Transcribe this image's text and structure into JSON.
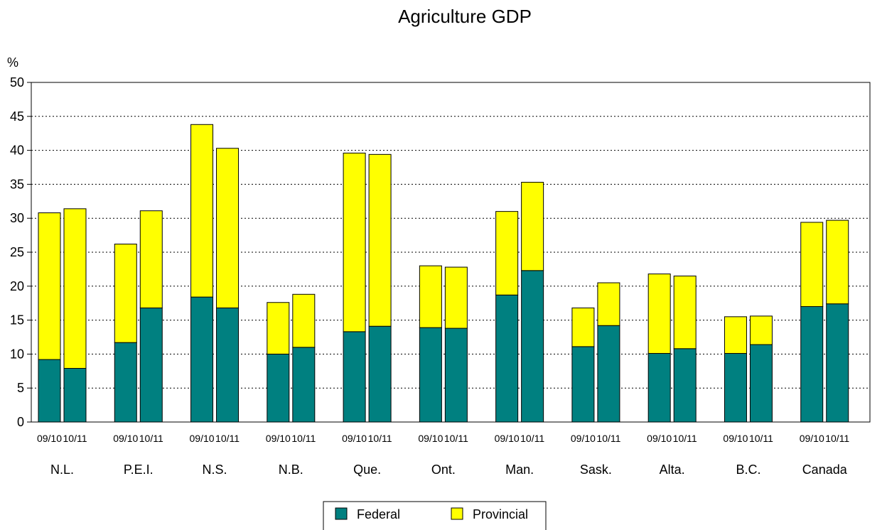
{
  "chart_data": {
    "type": "bar",
    "stacked": true,
    "title": "Agriculture GDP",
    "ylabel": "%",
    "xlabel": "",
    "ylim": [
      0,
      50
    ],
    "yticks": [
      0,
      5,
      10,
      15,
      20,
      25,
      30,
      35,
      40,
      45,
      50
    ],
    "grid": "horizontal dotted",
    "legend_position": "bottom",
    "regions": [
      "N.L.",
      "P.E.I.",
      "N.S.",
      "N.B.",
      "Que.",
      "Ont.",
      "Man.",
      "Sask.",
      "Alta.",
      "B.C.",
      "Canada"
    ],
    "periods": [
      "09/10",
      "10/11"
    ],
    "series": [
      {
        "name": "Federal",
        "color": "#008080",
        "values": [
          [
            9.2,
            7.9
          ],
          [
            11.7,
            16.8
          ],
          [
            18.4,
            16.8
          ],
          [
            10.0,
            11.0
          ],
          [
            13.3,
            14.1
          ],
          [
            13.9,
            13.8
          ],
          [
            18.7,
            22.3
          ],
          [
            11.1,
            14.2
          ],
          [
            10.1,
            10.8
          ],
          [
            10.1,
            11.4
          ],
          [
            17.0,
            17.4
          ]
        ]
      },
      {
        "name": "Provincial",
        "color": "#ffff00",
        "values": [
          [
            21.6,
            23.5
          ],
          [
            14.5,
            14.3
          ],
          [
            25.4,
            23.5
          ],
          [
            7.6,
            7.8
          ],
          [
            26.3,
            25.3
          ],
          [
            9.1,
            9.0
          ],
          [
            12.3,
            13.0
          ],
          [
            5.7,
            6.3
          ],
          [
            11.7,
            10.7
          ],
          [
            5.4,
            4.2
          ],
          [
            12.4,
            12.3
          ]
        ]
      }
    ]
  }
}
